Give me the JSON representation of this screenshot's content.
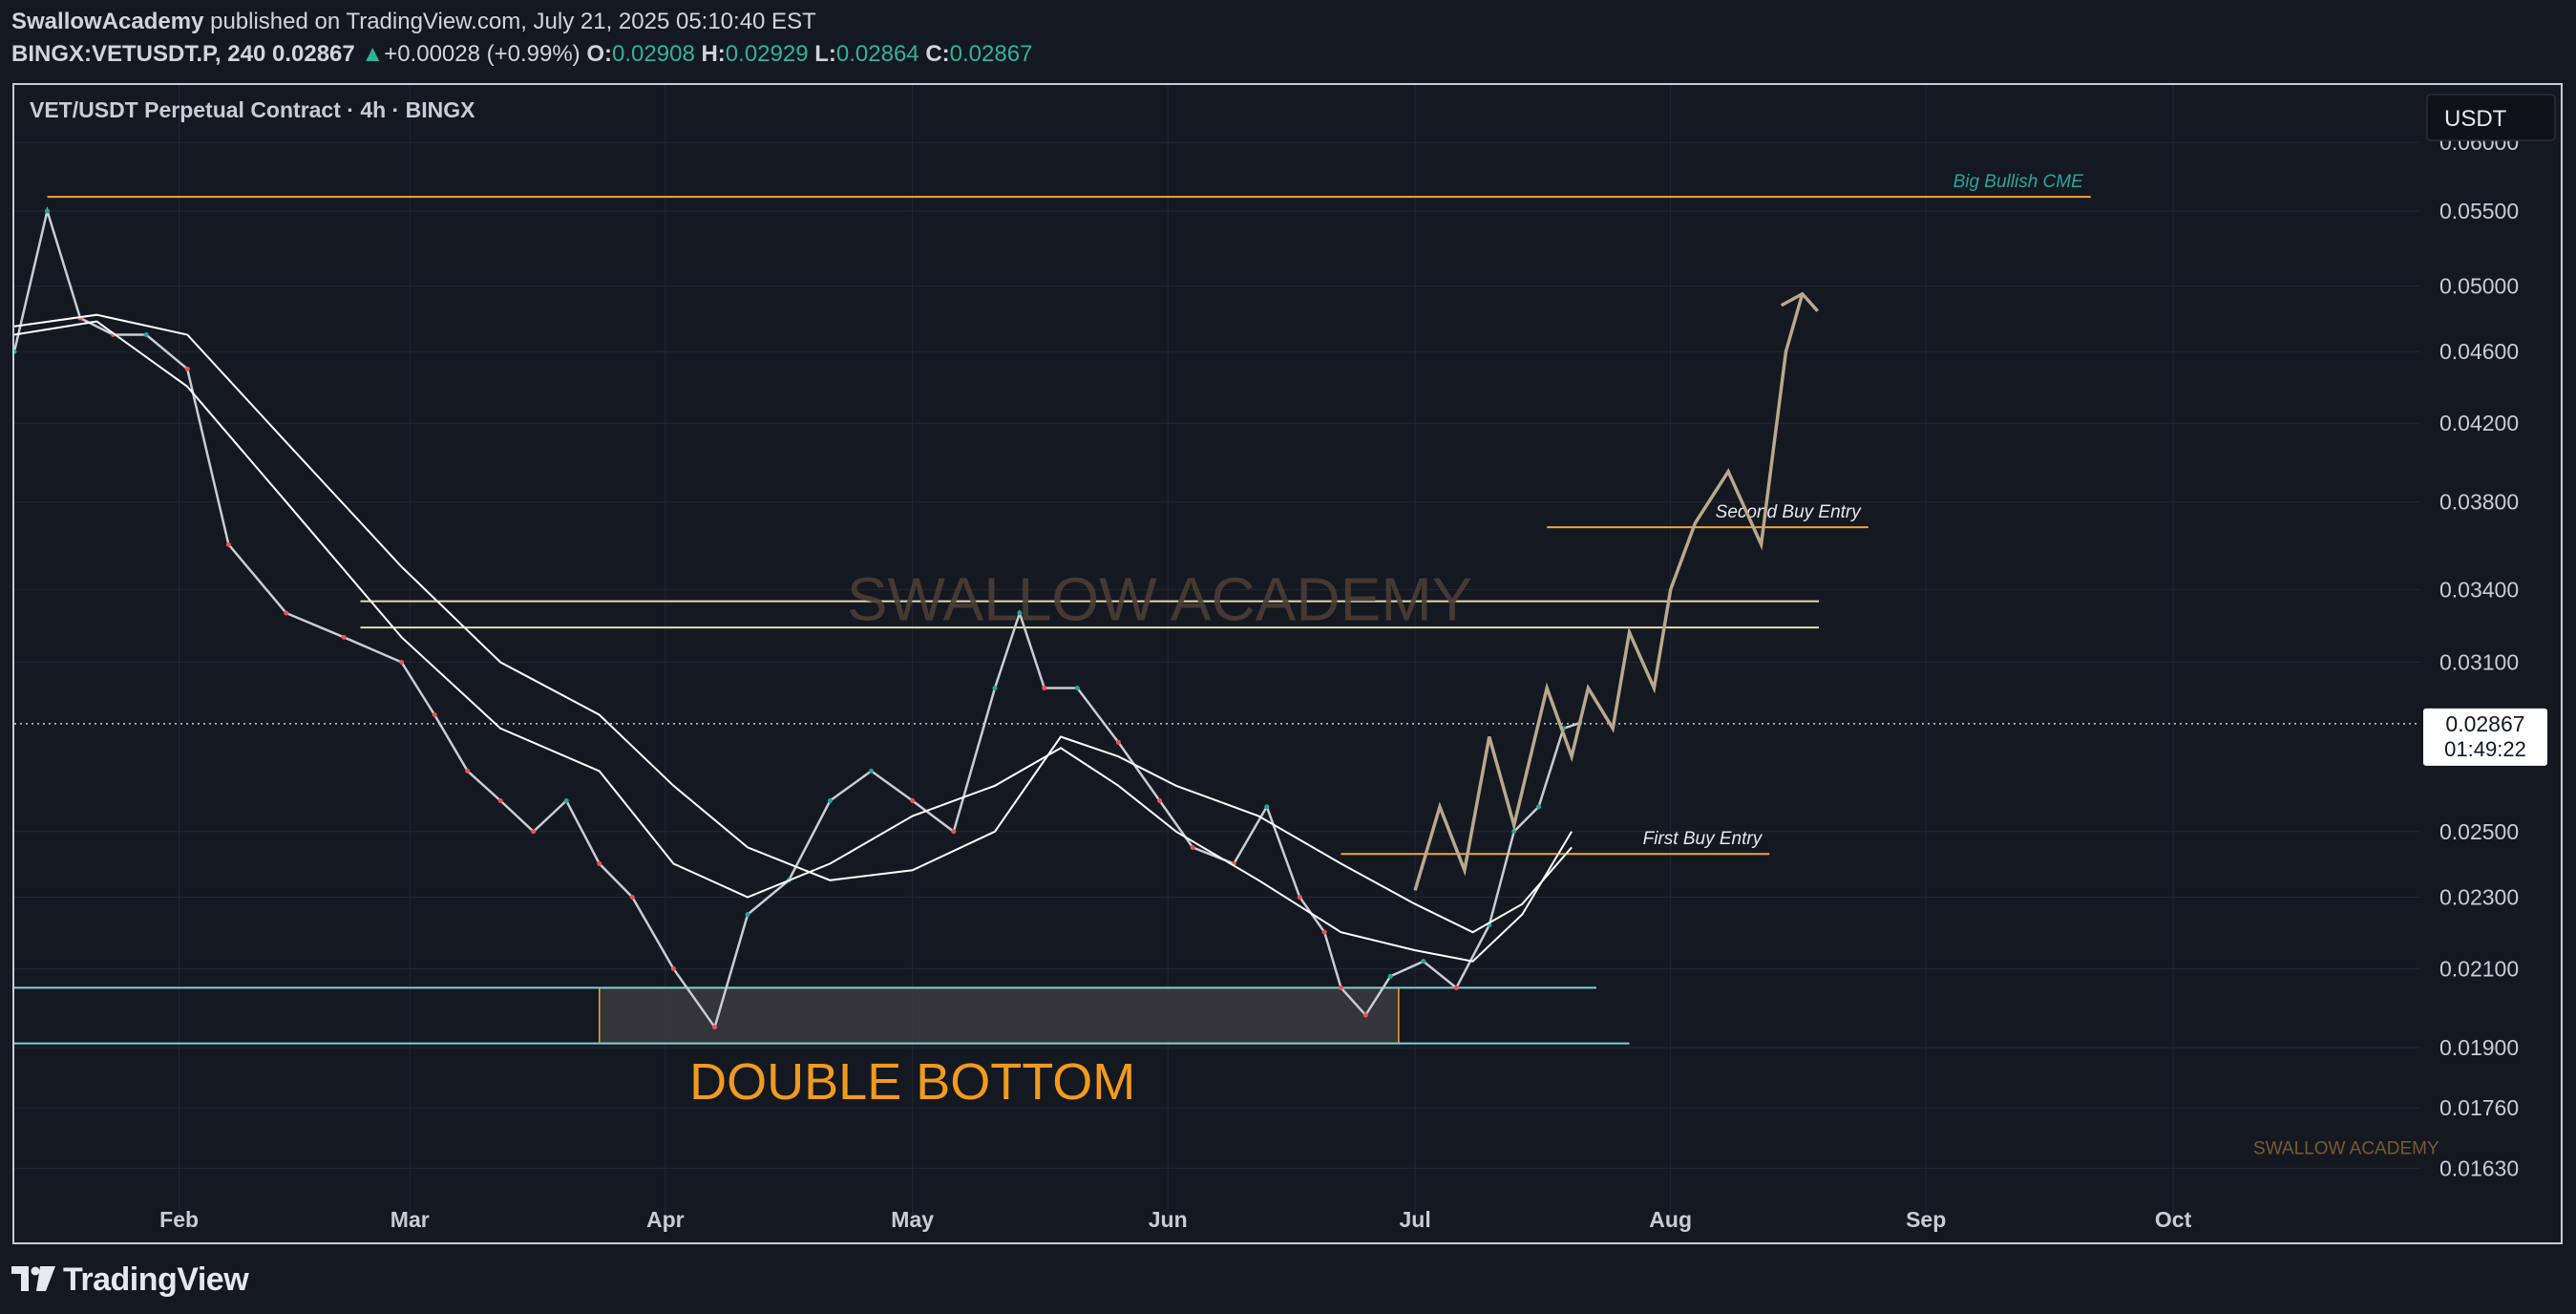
{
  "header": {
    "author": "SwallowAcademy",
    "published": " published on TradingView.com, July 21, 2025 05:10:40 EST",
    "symbol": "BINGX:VETUSDT.P, 240",
    "last": "0.02867",
    "change_arrow": "▲",
    "change": "+0.00028 (+0.99%)",
    "o_label": "O:",
    "o_value": "0.02908",
    "h_label": "H:",
    "h_value": "0.02929",
    "l_label": "L:",
    "l_value": "0.02864",
    "c_label": "C:",
    "c_value": "0.02867"
  },
  "footer": {
    "brand": "TradingView",
    "logo_icon": "tradingview-logo-icon"
  },
  "chart_data": {
    "type": "line",
    "title": "VET/USDT Perpetual Contract · 4h · BINGX",
    "currency_button": "USDT",
    "scale": "log",
    "ylim": [
      0.0158,
      0.063
    ],
    "y_ticks": [
      "0.06000",
      "0.05500",
      "0.05000",
      "0.04600",
      "0.04200",
      "0.03800",
      "0.03400",
      "0.03100",
      "0.02500",
      "0.02300",
      "0.02100",
      "0.01900",
      "0.01760",
      "0.01630"
    ],
    "x_ticks": [
      {
        "label": "Feb",
        "date": "2025-02-01"
      },
      {
        "label": "Mar",
        "date": "2025-03-01"
      },
      {
        "label": "Apr",
        "date": "2025-04-01"
      },
      {
        "label": "May",
        "date": "2025-05-01"
      },
      {
        "label": "Jun",
        "date": "2025-06-01"
      },
      {
        "label": "Jul",
        "date": "2025-07-01"
      },
      {
        "label": "Aug",
        "date": "2025-08-01"
      },
      {
        "label": "Sep",
        "date": "2025-09-01"
      },
      {
        "label": "Oct",
        "date": "2025-10-01"
      }
    ],
    "xlim": [
      "2025-01-12",
      "2025-10-31"
    ],
    "current_price": {
      "value": "0.02867",
      "countdown": "01:49:22"
    },
    "grid": true,
    "series": [
      {
        "name": "",
        "role": "price",
        "color": "#c9ccd4",
        "x": [
          "2025-01-12",
          "2025-01-16",
          "2025-01-20",
          "2025-01-24",
          "2025-01-28",
          "2025-02-02",
          "2025-02-07",
          "2025-02-14",
          "2025-02-21",
          "2025-02-28",
          "2025-03-04",
          "2025-03-08",
          "2025-03-12",
          "2025-03-16",
          "2025-03-20",
          "2025-03-24",
          "2025-03-28",
          "2025-04-02",
          "2025-04-07",
          "2025-04-11",
          "2025-04-16",
          "2025-04-21",
          "2025-04-26",
          "2025-05-01",
          "2025-05-06",
          "2025-05-11",
          "2025-05-14",
          "2025-05-17",
          "2025-05-21",
          "2025-05-26",
          "2025-05-31",
          "2025-06-04",
          "2025-06-09",
          "2025-06-13",
          "2025-06-17",
          "2025-06-20",
          "2025-06-22",
          "2025-06-25",
          "2025-06-28",
          "2025-07-02",
          "2025-07-06",
          "2025-07-10",
          "2025-07-13",
          "2025-07-16",
          "2025-07-19",
          "2025-07-21"
        ],
        "y": [
          0.046,
          0.055,
          0.048,
          0.047,
          0.047,
          0.045,
          0.036,
          0.033,
          0.032,
          0.031,
          0.029,
          0.027,
          0.026,
          0.025,
          0.026,
          0.024,
          0.023,
          0.021,
          0.0195,
          0.0225,
          0.0235,
          0.026,
          0.027,
          0.026,
          0.025,
          0.03,
          0.033,
          0.03,
          0.03,
          0.028,
          0.026,
          0.0245,
          0.024,
          0.0258,
          0.023,
          0.022,
          0.0205,
          0.0198,
          0.0208,
          0.0212,
          0.0205,
          0.0222,
          0.025,
          0.0258,
          0.0285,
          0.0287
        ]
      },
      {
        "name": "",
        "role": "moving-average-slow",
        "color": "#ffffff",
        "x": [
          "2025-01-12",
          "2025-01-22",
          "2025-02-02",
          "2025-02-14",
          "2025-02-28",
          "2025-03-12",
          "2025-03-24",
          "2025-04-02",
          "2025-04-11",
          "2025-04-21",
          "2025-05-01",
          "2025-05-11",
          "2025-05-19",
          "2025-05-26",
          "2025-06-02",
          "2025-06-12",
          "2025-06-22",
          "2025-07-01",
          "2025-07-08",
          "2025-07-14",
          "2025-07-20"
        ],
        "y": [
          0.0475,
          0.0482,
          0.047,
          0.041,
          0.035,
          0.031,
          0.029,
          0.0265,
          0.0245,
          0.0235,
          0.0238,
          0.025,
          0.0282,
          0.0275,
          0.0265,
          0.0255,
          0.024,
          0.0228,
          0.022,
          0.0228,
          0.0245
        ]
      },
      {
        "name": "",
        "role": "moving-average-fast",
        "color": "#ffffff",
        "x": [
          "2025-01-12",
          "2025-01-22",
          "2025-02-02",
          "2025-02-14",
          "2025-02-28",
          "2025-03-12",
          "2025-03-24",
          "2025-04-02",
          "2025-04-11",
          "2025-04-21",
          "2025-05-01",
          "2025-05-11",
          "2025-05-19",
          "2025-05-26",
          "2025-06-02",
          "2025-06-12",
          "2025-06-22",
          "2025-07-01",
          "2025-07-08",
          "2025-07-14",
          "2025-07-20"
        ],
        "y": [
          0.047,
          0.0478,
          0.044,
          0.038,
          0.032,
          0.0285,
          0.027,
          0.024,
          0.023,
          0.024,
          0.0255,
          0.0265,
          0.0278,
          0.0265,
          0.025,
          0.0235,
          0.022,
          0.0215,
          0.0212,
          0.0225,
          0.025
        ]
      },
      {
        "name": "",
        "role": "projection",
        "color": "#b9a88c",
        "x": [
          "2025-07-01",
          "2025-07-04",
          "2025-07-07",
          "2025-07-10",
          "2025-07-13",
          "2025-07-17",
          "2025-07-20",
          "2025-07-22",
          "2025-07-25",
          "2025-07-27",
          "2025-07-30",
          "2025-08-01",
          "2025-08-04",
          "2025-08-08",
          "2025-08-12",
          "2025-08-15",
          "2025-08-17"
        ],
        "y": [
          0.0232,
          0.0258,
          0.0238,
          0.0282,
          0.0252,
          0.03,
          0.0275,
          0.03,
          0.0285,
          0.0322,
          0.03,
          0.034,
          0.037,
          0.0395,
          0.036,
          0.046,
          0.0495
        ]
      }
    ],
    "levels": [
      {
        "label": "Big Bullish CME",
        "value": 0.056,
        "from": "2025-01-16",
        "to": "2025-09-21",
        "color": "#f0a43c",
        "label_color": "#26a69a"
      },
      {
        "label": "Second Buy Entry",
        "value": 0.0368,
        "from": "2025-07-17",
        "to": "2025-08-25",
        "color": "#f0a43c",
        "label_color": "#e6e8ee"
      },
      {
        "label": "",
        "value": 0.0335,
        "from": "2025-02-23",
        "to": "2025-08-19",
        "color": "#e6dcb4",
        "label_color": ""
      },
      {
        "label": "",
        "value": 0.0324,
        "from": "2025-02-23",
        "to": "2025-08-19",
        "color": "#e6dcb4",
        "label_color": ""
      },
      {
        "label": "First Buy Entry",
        "value": 0.0243,
        "from": "2025-06-22",
        "to": "2025-08-13",
        "color": "#f0a43c",
        "label_color": "#e6e8ee"
      },
      {
        "label": "",
        "value": 0.0205,
        "from": "2025-01-12",
        "to": "2025-07-23",
        "color": "#7fd1d8",
        "label_color": ""
      },
      {
        "label": "",
        "value": 0.0191,
        "from": "2025-01-12",
        "to": "2025-07-27",
        "color": "#7fd1d8",
        "label_color": ""
      }
    ],
    "zones": [
      {
        "from": "2025-03-24",
        "to": "2025-06-29",
        "y_low": 0.0191,
        "y_high": 0.0205,
        "color": "#3a3a3e"
      }
    ],
    "annotations": [
      {
        "text": "DOUBLE BOTTOM",
        "x": "2025-05-01",
        "y": 0.0178,
        "color": "#f29a1c"
      },
      {
        "text": "SWALLOW ACADEMY",
        "x": "2025-05-31",
        "y": 0.0327,
        "color": "#4a3d33",
        "kind": "watermark"
      },
      {
        "text": "SWALLOW ACADEMY",
        "x": "2025-10-22",
        "y": 0.0166,
        "color": "#7a5a2e",
        "kind": "signature"
      }
    ]
  }
}
